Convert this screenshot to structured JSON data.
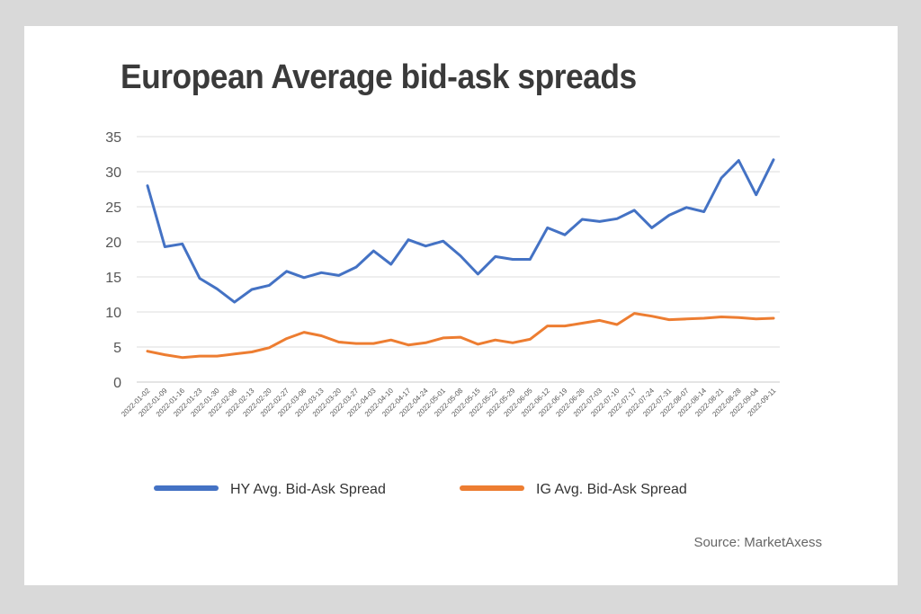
{
  "title": "European Average bid-ask spreads",
  "source": "Source: MarketAxess",
  "chart_data": {
    "type": "line",
    "title": "European Average bid-ask spreads",
    "xlabel": "",
    "ylabel": "",
    "ylim": [
      0,
      35
    ],
    "yticks": [
      0,
      5,
      10,
      15,
      20,
      25,
      30,
      35
    ],
    "grid": true,
    "legend_position": "bottom",
    "x": [
      "2022-01-02",
      "2022-01-09",
      "2022-01-16",
      "2022-01-23",
      "2022-01-30",
      "2022-02-06",
      "2022-02-13",
      "2022-02-20",
      "2022-02-27",
      "2022-03-06",
      "2022-03-13",
      "2022-03-20",
      "2022-03-27",
      "2022-04-03",
      "2022-04-10",
      "2022-04-17",
      "2022-04-24",
      "2022-05-01",
      "2022-05-08",
      "2022-05-15",
      "2022-05-22",
      "2022-05-29",
      "2022-06-05",
      "2022-06-12",
      "2022-06-19",
      "2022-06-26",
      "2022-07-03",
      "2022-07-10",
      "2022-07-17",
      "2022-07-24",
      "2022-07-31",
      "2022-08-07",
      "2022-08-14",
      "2022-08-21",
      "2022-08-28",
      "2022-09-04",
      "2022-09-11"
    ],
    "series": [
      {
        "name": "HY Avg. Bid-Ask Spread",
        "color": "#4472c4",
        "values": [
          28.0,
          19.3,
          19.7,
          14.8,
          13.3,
          11.4,
          13.2,
          13.8,
          15.8,
          14.9,
          15.6,
          15.2,
          16.4,
          18.7,
          16.8,
          20.3,
          19.4,
          20.1,
          18.0,
          15.4,
          17.9,
          17.5,
          17.5,
          22.0,
          21.0,
          23.2,
          22.9,
          23.3,
          24.5,
          22.0,
          23.8,
          24.9,
          24.3,
          29.1,
          31.6,
          26.7,
          31.7
        ]
      },
      {
        "name": "IG Avg. Bid-Ask Spread",
        "color": "#ed7d31",
        "values": [
          4.4,
          3.9,
          3.5,
          3.7,
          3.7,
          4.0,
          4.3,
          4.9,
          6.2,
          7.1,
          6.6,
          5.7,
          5.5,
          5.5,
          6.0,
          5.3,
          5.6,
          6.3,
          6.4,
          5.4,
          6.0,
          5.6,
          6.1,
          8.0,
          8.0,
          8.4,
          8.8,
          8.2,
          9.8,
          9.4,
          8.9,
          9.0,
          9.1,
          9.3,
          9.2,
          9.0,
          9.1
        ]
      }
    ]
  }
}
